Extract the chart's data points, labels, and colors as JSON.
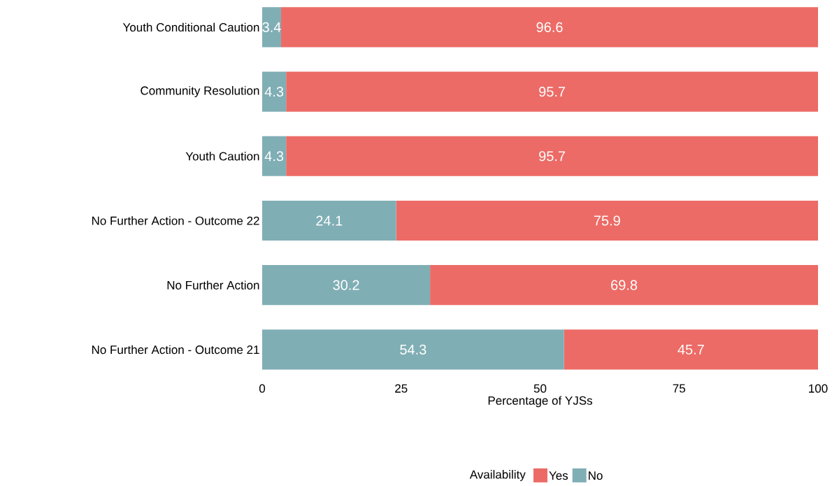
{
  "chart_data": {
    "type": "bar",
    "orientation": "horizontal",
    "stacked": true,
    "categories": [
      "Youth Conditional Caution",
      "Community Resolution",
      "Youth Caution",
      "No Further Action - Outcome 22",
      "No Further Action",
      "No Further Action - Outcome 21"
    ],
    "series": [
      {
        "name": "No",
        "color": "#80aeb5",
        "values": [
          3.4,
          4.3,
          4.3,
          24.1,
          30.2,
          54.3
        ]
      },
      {
        "name": "Yes",
        "color": "#ec6b66",
        "values": [
          96.6,
          95.7,
          95.7,
          75.9,
          69.8,
          45.7
        ]
      }
    ],
    "xlabel": "Percentage of YJSs",
    "legend_title": "Availability",
    "legend": "bottom",
    "xlim": [
      0,
      100
    ],
    "xticks": [
      0,
      25,
      50,
      75,
      100
    ],
    "data_labels": true,
    "grid": false
  }
}
